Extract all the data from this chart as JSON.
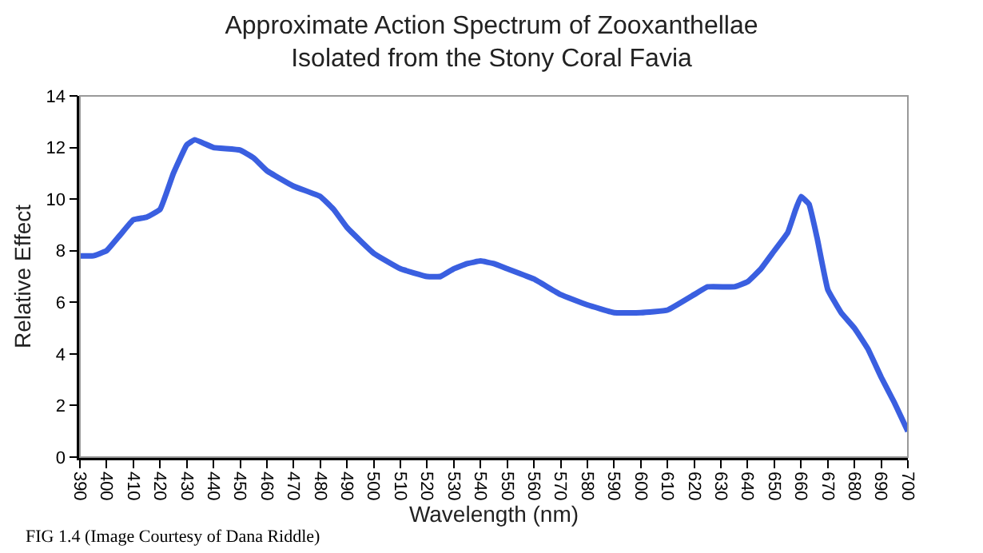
{
  "chart_data": {
    "type": "line",
    "title": "Approximate Action Spectrum of Zooxanthellae\nIsolated from the Stony Coral Favia",
    "xlabel": "Wavelength (nm)",
    "ylabel": "Relative Effect",
    "x": [
      390,
      395,
      400,
      405,
      410,
      415,
      420,
      425,
      430,
      433,
      440,
      450,
      455,
      460,
      470,
      480,
      485,
      490,
      500,
      510,
      520,
      525,
      530,
      535,
      540,
      545,
      550,
      560,
      570,
      580,
      590,
      600,
      610,
      620,
      625,
      635,
      640,
      645,
      650,
      655,
      658,
      660,
      663,
      666,
      670,
      675,
      680,
      685,
      690,
      695,
      700
    ],
    "series": [
      {
        "color": "#3a5fe0",
        "values": [
          7.8,
          7.8,
          8.0,
          8.6,
          9.2,
          9.3,
          9.6,
          11.0,
          12.1,
          12.3,
          12.0,
          11.9,
          11.6,
          11.1,
          10.5,
          10.1,
          9.6,
          8.9,
          7.9,
          7.3,
          7.0,
          7.0,
          7.3,
          7.5,
          7.6,
          7.5,
          7.3,
          6.9,
          6.3,
          5.9,
          5.6,
          5.6,
          5.7,
          6.3,
          6.6,
          6.6,
          6.8,
          7.3,
          8.0,
          8.7,
          9.6,
          10.1,
          9.8,
          8.5,
          6.5,
          5.6,
          5.0,
          4.2,
          3.1,
          2.1,
          1.0
        ]
      }
    ],
    "xlim": [
      390,
      700
    ],
    "xticks": [
      390,
      400,
      410,
      420,
      430,
      440,
      450,
      460,
      470,
      480,
      490,
      500,
      510,
      520,
      530,
      540,
      550,
      560,
      570,
      580,
      590,
      600,
      610,
      620,
      630,
      640,
      650,
      660,
      670,
      680,
      690,
      700
    ],
    "ylim": [
      0,
      14
    ],
    "yticks": [
      0,
      2,
      4,
      6,
      8,
      10,
      12,
      14
    ],
    "marker": "none",
    "line_style": "solid",
    "annotations": [
      "FIG 1.4 (Image Courtesy of Dana Riddle)"
    ]
  }
}
